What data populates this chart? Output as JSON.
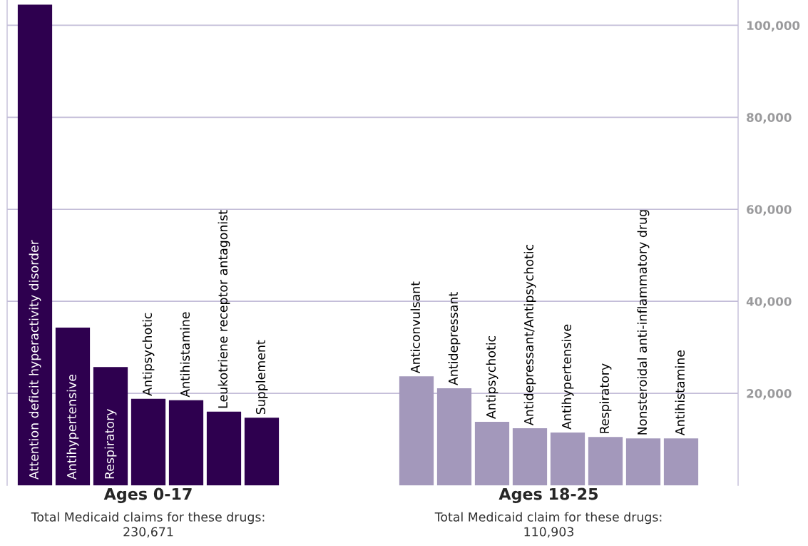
{
  "chart_data": [
    {
      "type": "bar",
      "categories": [
        "Attention deficit hyperactivity disorder",
        "Antihypertensive",
        "Respiratory",
        "Antipsychotic",
        "Antihistamine",
        "Leukotriene receptor antagonist",
        "Supplement"
      ],
      "values": [
        104500,
        34300,
        25700,
        18800,
        18500,
        16000,
        14700
      ],
      "color": "#2e004f",
      "ylim": [
        0,
        105500
      ],
      "yticks": [
        {
          "value": 20000,
          "label": null
        },
        {
          "value": 40000,
          "label": null
        },
        {
          "value": 60000,
          "label": null
        },
        {
          "value": 80000,
          "label": null
        },
        {
          "value": 100000,
          "label": null
        }
      ],
      "grid": "y",
      "tick_labels": false,
      "xlabel": "Ages 0-17",
      "annotations": [
        "Total Medicaid claims for these drugs:\n230,671"
      ]
    },
    {
      "type": "bar",
      "categories": [
        "Anticonvulsant",
        "Antidepressant",
        "Antipsychotic",
        "Antidepressant/Antipsychotic",
        "Antihypertensive",
        "Respiratory",
        "Nonsteroidal anti-inflammatory drug",
        "Antihistamine"
      ],
      "values": [
        23700,
        21100,
        13800,
        12400,
        11500,
        10500,
        10200,
        10200
      ],
      "color": "#a398bb",
      "ylim": [
        0,
        105500
      ],
      "yticks": [
        {
          "value": 20000,
          "label": "20,000"
        },
        {
          "value": 40000,
          "label": "40,000"
        },
        {
          "value": 60000,
          "label": "60,000"
        },
        {
          "value": 80000,
          "label": "80,000"
        },
        {
          "value": 100000,
          "label": "100,000"
        }
      ],
      "grid": "y",
      "tick_labels": "y",
      "xlabel": "Ages 18-25",
      "annotations": [
        "Total Medicaid claim for these drugs:\n110,903"
      ]
    }
  ]
}
